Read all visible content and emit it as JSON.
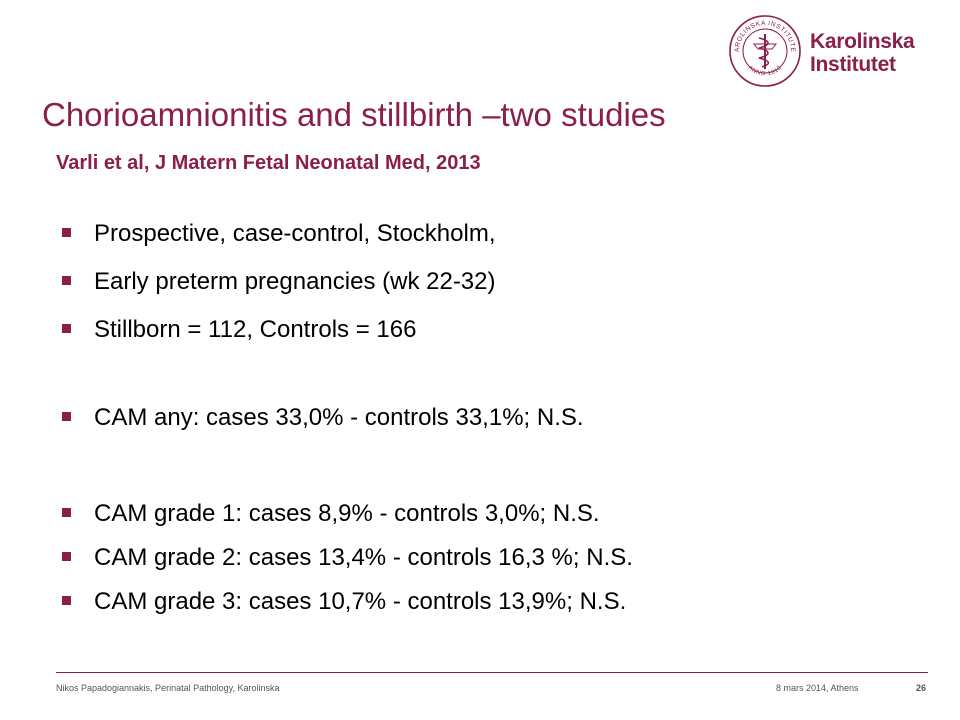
{
  "logo": {
    "line1": "Karolinska",
    "line2": "Institutet",
    "seal_text_top": "KAROLINSKA INSTITUTET",
    "seal_text_bottom": "ANNO 1810",
    "color": "#8b1f4c"
  },
  "slide": {
    "title": "Chorioamnionitis and stillbirth –two studies",
    "subtitle": "Varli et al, J Matern Fetal Neonatal Med, 2013",
    "bullets": [
      "Prospective, case-control, Stockholm,",
      "Early preterm pregnancies (wk 22-32)",
      "Stillborn = 112, Controls = 166",
      "CAM any: cases 33,0% - controls 33,1%; N.S.",
      "CAM grade 1: cases 8,9% - controls 3,0%; N.S.",
      "CAM grade 2: cases 13,4% - controls 16,3 %; N.S.",
      "CAM grade 3: cases 10,7% - controls 13,9%; N.S."
    ]
  },
  "footer": {
    "author": "Nikos Papadogiannakis, Perinatal Pathology, Karolinska",
    "date": "8 mars 2014, Athens",
    "page": "26"
  }
}
